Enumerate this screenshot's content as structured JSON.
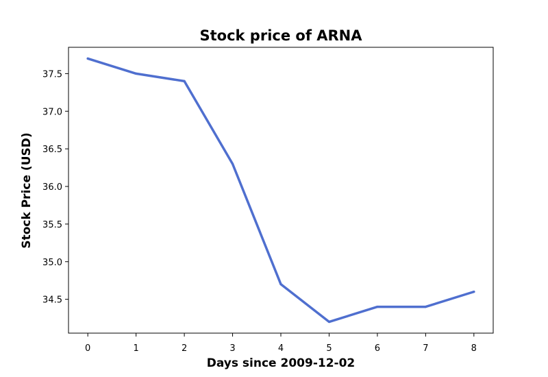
{
  "chart_data": {
    "type": "line",
    "title": "Stock price of ARNA",
    "xlabel": "Days since 2009-12-02",
    "ylabel": "Stock Price (USD)",
    "x": [
      0,
      1,
      2,
      3,
      4,
      5,
      6,
      7,
      8
    ],
    "series": [
      {
        "values": [
          37.7,
          37.5,
          37.4,
          36.3,
          34.7,
          34.2,
          34.4,
          34.4,
          34.6
        ],
        "color": "#4f6fcf"
      }
    ],
    "xlim": [
      -0.4,
      8.4
    ],
    "ylim": [
      34.05,
      37.85
    ],
    "xticks": [
      0,
      1,
      2,
      3,
      4,
      5,
      6,
      7,
      8
    ],
    "xtick_labels": [
      "0",
      "1",
      "2",
      "3",
      "4",
      "5",
      "6",
      "7",
      "8"
    ],
    "yticks": [
      34.5,
      35.0,
      35.5,
      36.0,
      36.5,
      37.0,
      37.5
    ],
    "ytick_labels": [
      "34.5",
      "35.0",
      "35.5",
      "36.0",
      "36.5",
      "37.0",
      "37.5"
    ],
    "grid": false,
    "legend": false
  }
}
